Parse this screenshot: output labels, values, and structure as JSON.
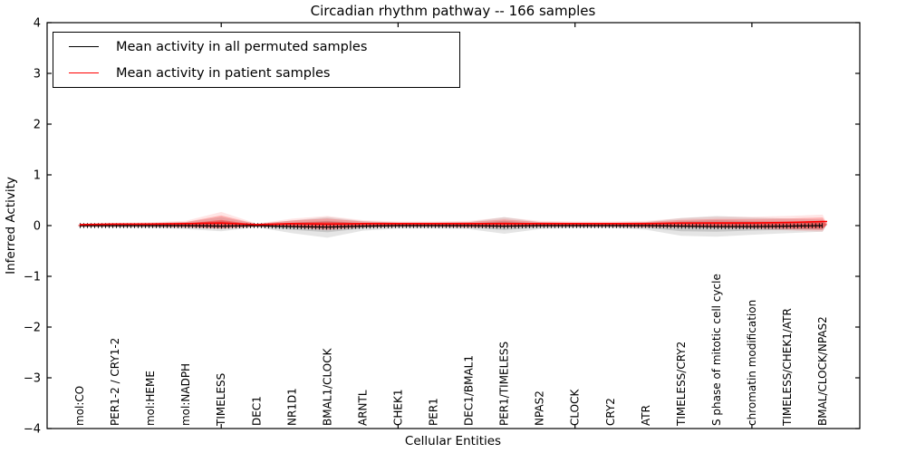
{
  "figure": {
    "title": "Circadian rhythm pathway -- 166 samples",
    "xlabel": "Cellular Entities",
    "ylabel": "Inferred Activity"
  },
  "legend": {
    "entries": [
      {
        "label": "Mean activity in all permuted samples",
        "color": "#000000"
      },
      {
        "label": "Mean activity in patient samples",
        "color": "#ff0000"
      }
    ]
  },
  "chart_data": {
    "type": "line",
    "title": "Circadian rhythm pathway -- 166 samples",
    "xlabel": "Cellular Entities",
    "ylabel": "Inferred Activity",
    "ylim": [
      -4,
      4
    ],
    "yticks": [
      -4,
      -3,
      -2,
      -1,
      0,
      1,
      2,
      3,
      4
    ],
    "grid": false,
    "legend_position": "upper left",
    "categories": [
      "mol:CO",
      "PER1-2 / CRY1-2",
      "mol:HEME",
      "mol:NADPH",
      "TIMELESS",
      "DEC1",
      "NR1D1",
      "BMAL1/CLOCK",
      "ARNTL",
      "CHEK1",
      "PER1",
      "DEC1/BMAL1",
      "PER1/TIMELESS",
      "NPAS2",
      "CLOCK",
      "CRY2",
      "ATR",
      "TIMELESS/CRY2",
      "S phase of mitotic cell cycle",
      "chromatin modification",
      "TIMELESS/CHEK1/ATR",
      "BMAL/CLOCK/NPAS2"
    ],
    "x_major_tick_indices": [
      4,
      9,
      14,
      19
    ],
    "series": [
      {
        "name": "Mean activity in all permuted samples",
        "color": "#000000",
        "marker": "vertical-tick",
        "values": [
          0,
          0,
          0,
          0,
          -0.01,
          0,
          -0.02,
          -0.03,
          -0.01,
          0,
          0,
          0,
          -0.01,
          0,
          0,
          0,
          0,
          -0.01,
          -0.02,
          -0.02,
          -0.01,
          0
        ]
      },
      {
        "name": "Mean activity in patient samples",
        "color": "#ff0000",
        "marker": "none",
        "values": [
          0.02,
          0.03,
          0.03,
          0.04,
          0.05,
          0.02,
          0.04,
          0.03,
          0.04,
          0.04,
          0.04,
          0.04,
          0.04,
          0.04,
          0.04,
          0.04,
          0.04,
          0.05,
          0.05,
          0.05,
          0.06,
          0.08
        ]
      }
    ],
    "envelopes": [
      {
        "name": "permuted-samples-distribution",
        "color": "#000000",
        "upper": [
          0.03,
          0.04,
          0.05,
          0.07,
          0.17,
          0.03,
          0.1,
          0.17,
          0.09,
          0.06,
          0.06,
          0.07,
          0.17,
          0.07,
          0.05,
          0.05,
          0.07,
          0.15,
          0.19,
          0.16,
          0.14,
          0.12
        ],
        "lower": [
          -0.03,
          -0.04,
          -0.05,
          -0.07,
          -0.11,
          -0.03,
          -0.15,
          -0.24,
          -0.1,
          -0.06,
          -0.06,
          -0.07,
          -0.16,
          -0.07,
          -0.05,
          -0.05,
          -0.08,
          -0.2,
          -0.22,
          -0.18,
          -0.15,
          -0.12
        ]
      },
      {
        "name": "patient-samples-distribution",
        "color": "#ff0000",
        "upper": [
          0.03,
          0.04,
          0.05,
          0.07,
          0.2,
          0.03,
          0.1,
          0.14,
          0.08,
          0.06,
          0.06,
          0.07,
          0.12,
          0.07,
          0.06,
          0.06,
          0.07,
          0.11,
          0.13,
          0.13,
          0.14,
          0.16
        ],
        "lower": [
          -0.02,
          -0.02,
          -0.02,
          -0.03,
          -0.05,
          -0.02,
          -0.03,
          -0.07,
          -0.03,
          -0.02,
          -0.02,
          -0.03,
          -0.03,
          -0.02,
          -0.02,
          -0.02,
          -0.03,
          -0.03,
          -0.04,
          -0.05,
          -0.07,
          -0.09
        ]
      }
    ]
  }
}
